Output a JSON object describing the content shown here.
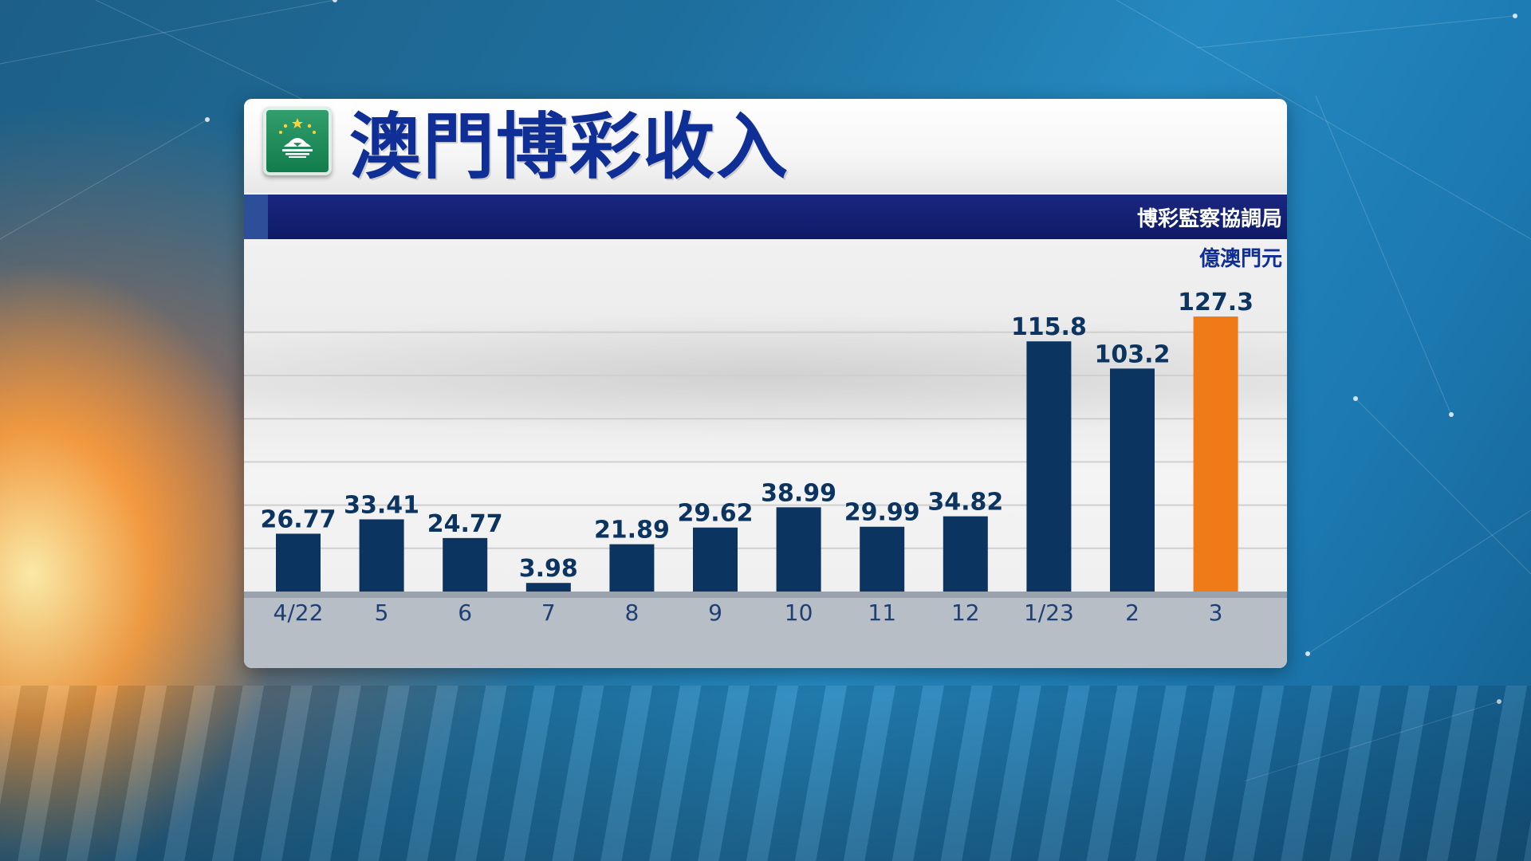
{
  "header": {
    "title": "澳門博彩收入",
    "source": "博彩監察協調局",
    "unit": "億澳門元"
  },
  "colors": {
    "title": "#0f2f96",
    "band": "#0f1a66",
    "bar": "#0c3461",
    "highlight_bar": "#f07a18",
    "axis_strip": "#b7bec6"
  },
  "logo": {
    "name": "macau-flag-icon"
  },
  "chart_data": {
    "type": "bar",
    "categories": [
      "4/22",
      "5",
      "6",
      "7",
      "8",
      "9",
      "10",
      "11",
      "12",
      "1/23",
      "2",
      "3"
    ],
    "values": [
      26.77,
      33.41,
      24.77,
      3.98,
      21.89,
      29.62,
      38.99,
      29.99,
      34.82,
      115.8,
      103.2,
      127.3
    ],
    "data_labels": [
      "26.77",
      "33.41",
      "24.77",
      "3.98",
      "21.89",
      "29.62",
      "38.99",
      "29.99",
      "34.82",
      "115.8",
      "103.2",
      "127.3"
    ],
    "highlight_index": 11,
    "ylim": [
      0,
      140
    ],
    "grid": true,
    "xlabel": "",
    "ylabel": ""
  }
}
